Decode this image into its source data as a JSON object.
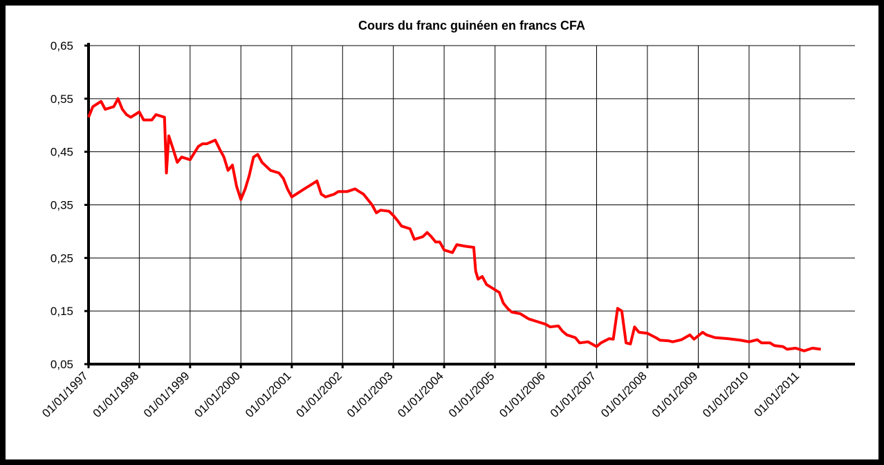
{
  "chart_data": {
    "type": "line",
    "title": "Cours du franc guinéen en francs CFA",
    "color": "#ff0000",
    "grid": true,
    "xlim": [
      "1997-01-01",
      "2012-02-01"
    ],
    "xticks": [
      {
        "value": "1997-01-01",
        "label": "01/01/1997"
      },
      {
        "value": "1998-01-01",
        "label": "01/01/1998"
      },
      {
        "value": "1999-01-01",
        "label": "01/01/1999"
      },
      {
        "value": "2000-01-01",
        "label": "01/01/2000"
      },
      {
        "value": "2001-01-01",
        "label": "01/01/2001"
      },
      {
        "value": "2002-01-01",
        "label": "01/01/2002"
      },
      {
        "value": "2003-01-01",
        "label": "01/01/2003"
      },
      {
        "value": "2004-01-01",
        "label": "01/01/2004"
      },
      {
        "value": "2005-01-01",
        "label": "01/01/2005"
      },
      {
        "value": "2006-01-01",
        "label": "01/01/2006"
      },
      {
        "value": "2007-01-01",
        "label": "01/01/2007"
      },
      {
        "value": "2008-01-01",
        "label": "01/01/2008"
      },
      {
        "value": "2009-01-01",
        "label": "01/01/2009"
      },
      {
        "value": "2010-01-01",
        "label": "01/01/2010"
      },
      {
        "value": "2011-01-01",
        "label": "01/01/2011"
      }
    ],
    "ylim": [
      0.05,
      0.65
    ],
    "yticks": [
      {
        "value": 0.05,
        "label": "0,05"
      },
      {
        "value": 0.15,
        "label": "0,15"
      },
      {
        "value": 0.25,
        "label": "0,25"
      },
      {
        "value": 0.35,
        "label": "0,35"
      },
      {
        "value": 0.45,
        "label": "0,45"
      },
      {
        "value": 0.55,
        "label": "0,55"
      },
      {
        "value": 0.65,
        "label": "0,65"
      }
    ],
    "x": [
      "1997-01-01",
      "1997-02-01",
      "1997-04-01",
      "1997-05-01",
      "1997-07-01",
      "1997-08-01",
      "1997-09-01",
      "1997-10-01",
      "1997-11-01",
      "1998-01-01",
      "1998-02-01",
      "1998-04-01",
      "1998-05-01",
      "1998-07-01",
      "1998-07-15",
      "1998-08-01",
      "1998-09-01",
      "1998-10-01",
      "1998-11-01",
      "1999-01-01",
      "1999-03-01",
      "1999-04-01",
      "1999-05-01",
      "1999-07-01",
      "1999-08-01",
      "1999-09-01",
      "1999-10-01",
      "1999-11-01",
      "1999-12-01",
      "2000-01-01",
      "2000-02-01",
      "2000-03-01",
      "2000-04-01",
      "2000-05-01",
      "2000-06-01",
      "2000-08-01",
      "2000-10-01",
      "2000-11-01",
      "2000-12-01",
      "2001-01-01",
      "2001-02-01",
      "2001-04-01",
      "2001-06-01",
      "2001-07-01",
      "2001-08-01",
      "2001-09-01",
      "2001-11-01",
      "2001-12-01",
      "2002-02-01",
      "2002-04-01",
      "2002-05-01",
      "2002-06-01",
      "2002-07-01",
      "2002-08-01",
      "2002-09-01",
      "2002-10-01",
      "2002-12-01",
      "2003-01-01",
      "2003-02-01",
      "2003-03-01",
      "2003-05-01",
      "2003-06-01",
      "2003-08-01",
      "2003-09-01",
      "2003-10-01",
      "2003-11-01",
      "2003-12-01",
      "2004-01-01",
      "2004-03-01",
      "2004-04-01",
      "2004-06-01",
      "2004-08-01",
      "2004-08-15",
      "2004-09-01",
      "2004-10-01",
      "2004-11-01",
      "2004-12-01",
      "2005-01-01",
      "2005-02-01",
      "2005-03-01",
      "2005-04-01",
      "2005-05-01",
      "2005-07-01",
      "2005-09-01",
      "2005-11-01",
      "2006-01-01",
      "2006-02-01",
      "2006-04-01",
      "2006-05-01",
      "2006-06-01",
      "2006-08-01",
      "2006-09-01",
      "2006-11-01",
      "2007-01-01",
      "2007-02-01",
      "2007-04-01",
      "2007-05-01",
      "2007-06-01",
      "2007-07-01",
      "2007-08-01",
      "2007-09-01",
      "2007-10-01",
      "2007-11-01",
      "2008-01-01",
      "2008-03-01",
      "2008-04-01",
      "2008-06-01",
      "2008-07-01",
      "2008-09-01",
      "2008-11-01",
      "2008-12-01",
      "2009-02-01",
      "2009-03-01",
      "2009-05-01",
      "2009-08-01",
      "2009-11-01",
      "2010-01-01",
      "2010-03-01",
      "2010-04-01",
      "2010-06-01",
      "2010-07-01",
      "2010-09-01",
      "2010-10-01",
      "2010-12-01",
      "2011-02-01",
      "2011-04-01",
      "2011-06-01"
    ],
    "values": [
      0.515,
      0.535,
      0.545,
      0.53,
      0.535,
      0.55,
      0.53,
      0.52,
      0.515,
      0.525,
      0.51,
      0.51,
      0.52,
      0.515,
      0.41,
      0.48,
      0.455,
      0.43,
      0.44,
      0.435,
      0.46,
      0.465,
      0.465,
      0.472,
      0.455,
      0.44,
      0.415,
      0.425,
      0.385,
      0.36,
      0.38,
      0.405,
      0.44,
      0.445,
      0.43,
      0.415,
      0.41,
      0.4,
      0.38,
      0.365,
      0.37,
      0.38,
      0.39,
      0.395,
      0.37,
      0.365,
      0.37,
      0.375,
      0.375,
      0.38,
      0.375,
      0.37,
      0.36,
      0.35,
      0.335,
      0.34,
      0.338,
      0.33,
      0.32,
      0.31,
      0.305,
      0.285,
      0.29,
      0.298,
      0.29,
      0.28,
      0.28,
      0.265,
      0.26,
      0.275,
      0.272,
      0.27,
      0.225,
      0.21,
      0.215,
      0.2,
      0.195,
      0.19,
      0.185,
      0.165,
      0.155,
      0.148,
      0.145,
      0.135,
      0.13,
      0.125,
      0.12,
      0.122,
      0.112,
      0.105,
      0.1,
      0.09,
      0.092,
      0.083,
      0.09,
      0.098,
      0.097,
      0.155,
      0.15,
      0.09,
      0.088,
      0.12,
      0.11,
      0.108,
      0.1,
      0.095,
      0.094,
      0.092,
      0.096,
      0.105,
      0.097,
      0.11,
      0.105,
      0.1,
      0.098,
      0.095,
      0.092,
      0.096,
      0.09,
      0.09,
      0.085,
      0.083,
      0.078,
      0.08,
      0.075,
      0.08,
      0.078
    ]
  }
}
